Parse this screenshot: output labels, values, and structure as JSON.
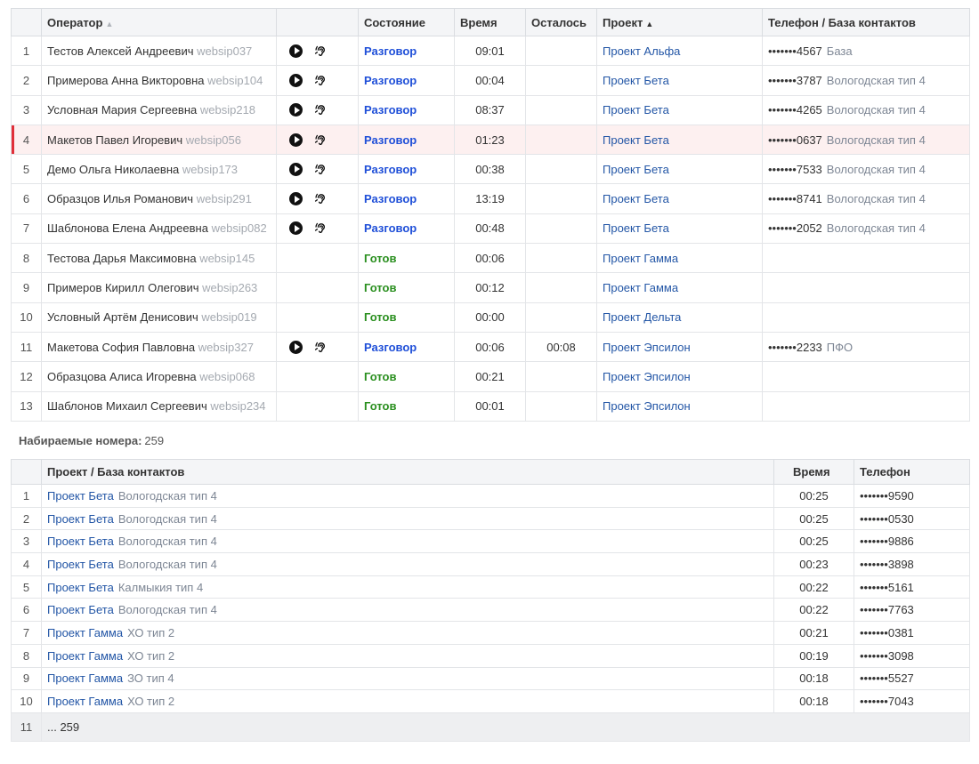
{
  "operators_table": {
    "headers": {
      "operator": "Оператор",
      "state": "Состояние",
      "time": "Время",
      "remaining": "Осталось",
      "project": "Проект",
      "phone_db": "Телефон / База контактов"
    },
    "rows": [
      {
        "n": "1",
        "name": "Тестов Алексей Андреевич",
        "login": "websip037",
        "controls": true,
        "state": "Разговор",
        "state_type": "talk",
        "time": "09:01",
        "remaining": "",
        "project": "Проект Альфа",
        "phone": "•••••••4567",
        "db": "База"
      },
      {
        "n": "2",
        "name": "Примерова Анна Викторовна",
        "login": "websip104",
        "controls": true,
        "state": "Разговор",
        "state_type": "talk",
        "time": "00:04",
        "remaining": "",
        "project": "Проект Бета",
        "phone": "•••••••3787",
        "db": "Вологодская тип 4"
      },
      {
        "n": "3",
        "name": "Условная Мария Сергеевна",
        "login": "websip218",
        "controls": true,
        "state": "Разговор",
        "state_type": "talk",
        "time": "08:37",
        "remaining": "",
        "project": "Проект Бета",
        "phone": "•••••••4265",
        "db": "Вологодская тип 4"
      },
      {
        "n": "4",
        "name": "Макетов Павел Игоревич",
        "login": "websip056",
        "controls": true,
        "state": "Разговор",
        "state_type": "talk",
        "time": "01:23",
        "remaining": "",
        "project": "Проект Бета",
        "phone": "•••••••0637",
        "db": "Вологодская тип 4",
        "highlight": true
      },
      {
        "n": "5",
        "name": "Демо Ольга Николаевна",
        "login": "websip173",
        "controls": true,
        "state": "Разговор",
        "state_type": "talk",
        "time": "00:38",
        "remaining": "",
        "project": "Проект Бета",
        "phone": "•••••••7533",
        "db": "Вологодская тип 4"
      },
      {
        "n": "6",
        "name": "Образцов Илья Романович",
        "login": "websip291",
        "controls": true,
        "state": "Разговор",
        "state_type": "talk",
        "time": "13:19",
        "remaining": "",
        "project": "Проект Бета",
        "phone": "•••••••8741",
        "db": "Вологодская тип 4"
      },
      {
        "n": "7",
        "name": "Шаблонова Елена Андреевна",
        "login": "websip082",
        "controls": true,
        "state": "Разговор",
        "state_type": "talk",
        "time": "00:48",
        "remaining": "",
        "project": "Проект Бета",
        "phone": "•••••••2052",
        "db": "Вологодская тип 4"
      },
      {
        "n": "8",
        "name": "Тестова Дарья Максимовна",
        "login": "websip145",
        "controls": false,
        "state": "Готов",
        "state_type": "ready",
        "time": "00:06",
        "remaining": "",
        "project": "Проект Гамма",
        "phone": "",
        "db": ""
      },
      {
        "n": "9",
        "name": "Примеров Кирилл Олегович",
        "login": "websip263",
        "controls": false,
        "state": "Готов",
        "state_type": "ready",
        "time": "00:12",
        "remaining": "",
        "project": "Проект Гамма",
        "phone": "",
        "db": ""
      },
      {
        "n": "10",
        "name": "Условный Артём Денисович",
        "login": "websip019",
        "controls": false,
        "state": "Готов",
        "state_type": "ready",
        "time": "00:00",
        "remaining": "",
        "project": "Проект Дельта",
        "phone": "",
        "db": ""
      },
      {
        "n": "11",
        "name": "Макетова София Павловна",
        "login": "websip327",
        "controls": true,
        "state": "Разговор",
        "state_type": "talk",
        "time": "00:06",
        "remaining": "00:08",
        "project": "Проект Эпсилон",
        "phone": "•••••••2233",
        "db": "ПФО"
      },
      {
        "n": "12",
        "name": "Образцова Алиса Игоревна",
        "login": "websip068",
        "controls": false,
        "state": "Готов",
        "state_type": "ready",
        "time": "00:21",
        "remaining": "",
        "project": "Проект Эпсилон",
        "phone": "",
        "db": ""
      },
      {
        "n": "13",
        "name": "Шаблонов Михаил Сергеевич",
        "login": "websip234",
        "controls": false,
        "state": "Готов",
        "state_type": "ready",
        "time": "00:01",
        "remaining": "",
        "project": "Проект Эпсилон",
        "phone": "",
        "db": ""
      }
    ]
  },
  "dialing": {
    "label": "Набираемые номера:",
    "count": "259"
  },
  "dialing_table": {
    "headers": {
      "project_db": "Проект / База контактов",
      "time": "Время",
      "phone": "Телефон"
    },
    "rows": [
      {
        "n": "1",
        "project": "Проект Бета",
        "db": "Вологодская тип 4",
        "time": "00:25",
        "phone": "•••••••9590"
      },
      {
        "n": "2",
        "project": "Проект Бета",
        "db": "Вологодская тип 4",
        "time": "00:25",
        "phone": "•••••••0530"
      },
      {
        "n": "3",
        "project": "Проект Бета",
        "db": "Вологодская тип 4",
        "time": "00:25",
        "phone": "•••••••9886"
      },
      {
        "n": "4",
        "project": "Проект Бета",
        "db": "Вологодская тип 4",
        "time": "00:23",
        "phone": "•••••••3898"
      },
      {
        "n": "5",
        "project": "Проект Бета",
        "db": "Калмыкия тип 4",
        "time": "00:22",
        "phone": "•••••••5161"
      },
      {
        "n": "6",
        "project": "Проект Бета",
        "db": "Вологодская тип 4",
        "time": "00:22",
        "phone": "•••••••7763"
      },
      {
        "n": "7",
        "project": "Проект Гамма",
        "db": "ХО тип 2",
        "time": "00:21",
        "phone": "•••••••0381"
      },
      {
        "n": "8",
        "project": "Проект Гамма",
        "db": "ХО тип 2",
        "time": "00:19",
        "phone": "•••••••3098"
      },
      {
        "n": "9",
        "project": "Проект Гамма",
        "db": "ЗО тип 4",
        "time": "00:18",
        "phone": "•••••••5527"
      },
      {
        "n": "10",
        "project": "Проект Гамма",
        "db": "ХО тип 2",
        "time": "00:18",
        "phone": "•••••••7043"
      }
    ],
    "more": {
      "n": "11",
      "text": "... 259"
    }
  },
  "icons": {
    "operator_sort": "sort-asc-inactive-icon",
    "project_sort": "sort-asc-icon",
    "row_controls": [
      "play-icon",
      "listen-icon"
    ]
  },
  "colors": {
    "state_talk": "#1f4fd8",
    "state_ready": "#2a8f1f",
    "project_link": "#2356a6",
    "highlight_row": "#fdf0f0",
    "highlight_marker": "#e0303a"
  }
}
